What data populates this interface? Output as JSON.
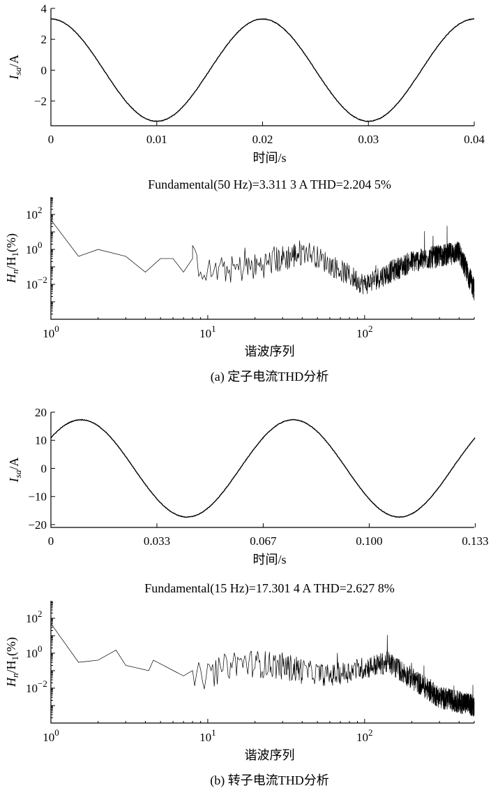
{
  "chart_data": [
    {
      "type": "line",
      "ylabel_main": "I",
      "ylabel_sub": "sa",
      "ylabel_unit": "/A",
      "xlabel": "时间/s",
      "xlim": [
        0,
        0.04
      ],
      "ylim": [
        -3.6,
        4
      ],
      "xticks": [
        "0",
        "0.01",
        "0.02",
        "0.03",
        "0.04"
      ],
      "xtick_values": [
        0,
        0.01,
        0.02,
        0.03,
        0.04
      ],
      "yticks": [
        "4",
        "2",
        "0",
        "−2"
      ],
      "ytick_values": [
        4,
        2,
        0,
        -2
      ],
      "series": [
        {
          "amplitude": 3.3113,
          "frequency": 50,
          "phase_deg": 90,
          "x_range": [
            0,
            0.04
          ]
        }
      ],
      "caption": ""
    },
    {
      "type": "line",
      "title": "Fundamental(50 Hz)=3.311 3 A    THD=2.204 5%",
      "ylabel_main": "H",
      "ylabel_sub": "n",
      "ylabel_rest": "/H",
      "ylabel_sub2": "1",
      "ylabel_unit": "(%)",
      "xlabel": "谐波序列",
      "xscale": "log",
      "yscale": "log",
      "xlim": [
        1,
        500
      ],
      "ylim": [
        0.0001,
        1000
      ],
      "xticks": [
        {
          "base": "10",
          "exp": "0"
        },
        {
          "base": "10",
          "exp": "1"
        },
        {
          "base": "10",
          "exp": "2"
        }
      ],
      "xtick_values": [
        1,
        10,
        100
      ],
      "yticks": [
        {
          "base": "10",
          "exp": "2"
        },
        {
          "base": "10",
          "exp": "0"
        },
        {
          "base": "10",
          "exp": "−2"
        }
      ],
      "ytick_values": [
        100,
        1,
        0.01
      ],
      "key_points": [
        [
          1,
          50
        ],
        [
          1.5,
          0.4
        ],
        [
          2,
          1.0
        ],
        [
          3,
          0.4
        ],
        [
          4,
          0.05
        ],
        [
          5,
          0.3
        ],
        [
          6,
          0.3
        ],
        [
          7,
          0.05
        ],
        [
          8,
          0.3
        ],
        [
          10,
          0.05
        ],
        [
          20,
          0.1
        ],
        [
          43,
          0.8
        ],
        [
          100,
          0.01
        ],
        [
          200,
          0.2
        ],
        [
          400,
          0.7
        ],
        [
          500,
          0.005
        ]
      ],
      "caption": "(a) 定子电流THD分析"
    },
    {
      "type": "line",
      "ylabel_main": "I",
      "ylabel_sub": "sa",
      "ylabel_unit": "/A",
      "xlabel": "时间/s",
      "xlim": [
        0,
        0.133
      ],
      "ylim": [
        -21,
        20
      ],
      "xticks": [
        "0",
        "0.033",
        "0.067",
        "0.100",
        "0.133"
      ],
      "xtick_values": [
        0,
        0.0333,
        0.0667,
        0.1,
        0.1333
      ],
      "yticks": [
        "20",
        "10",
        "0",
        "−10",
        "−20"
      ],
      "ytick_values": [
        20,
        10,
        0,
        -10,
        -20
      ],
      "series": [
        {
          "amplitude": 17.3014,
          "frequency": 15,
          "phase_deg": 39,
          "x_range": [
            0,
            0.1333
          ]
        }
      ],
      "caption": ""
    },
    {
      "type": "line",
      "title": "Fundamental(15 Hz)=17.301 4 A    THD=2.627 8%",
      "ylabel_main": "H",
      "ylabel_sub": "n",
      "ylabel_rest": "/H",
      "ylabel_sub2": "1",
      "ylabel_unit": "(%)",
      "xlabel": "谐波序列",
      "xscale": "log",
      "yscale": "log",
      "xlim": [
        1,
        500
      ],
      "ylim": [
        0.0001,
        1000
      ],
      "xticks": [
        {
          "base": "10",
          "exp": "0"
        },
        {
          "base": "10",
          "exp": "1"
        },
        {
          "base": "10",
          "exp": "2"
        }
      ],
      "xtick_values": [
        1,
        10,
        100
      ],
      "yticks": [
        {
          "base": "10",
          "exp": "2"
        },
        {
          "base": "10",
          "exp": "0"
        },
        {
          "base": "10",
          "exp": "−2"
        }
      ],
      "ytick_values": [
        100,
        1,
        0.01
      ],
      "key_points": [
        [
          1,
          50
        ],
        [
          1.5,
          0.3
        ],
        [
          2,
          0.4
        ],
        [
          2.6,
          1.5
        ],
        [
          3,
          0.2
        ],
        [
          4.2,
          0.1
        ],
        [
          4.5,
          0.4
        ],
        [
          7,
          0.05
        ],
        [
          10,
          0.05
        ],
        [
          15,
          0.3
        ],
        [
          28,
          0.2
        ],
        [
          60,
          0.05
        ],
        [
          142,
          0.3
        ],
        [
          300,
          0.003
        ],
        [
          500,
          0.001
        ]
      ],
      "caption": "(b) 转子电流THD分析"
    }
  ]
}
